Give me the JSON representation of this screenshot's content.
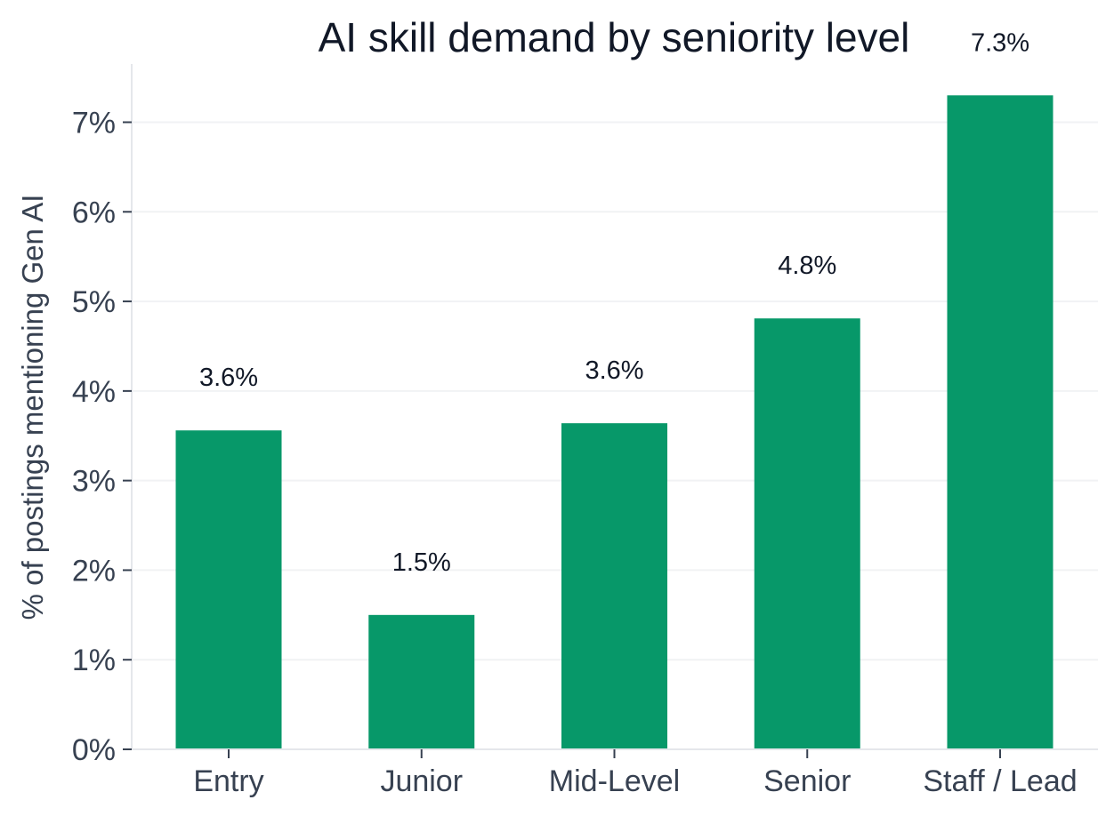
{
  "chart_data": {
    "type": "bar",
    "title": "AI skill demand by seniority level",
    "xlabel": "",
    "ylabel": "% of postings mentioning Gen AI",
    "categories": [
      "Entry",
      "Junior",
      "Mid-Level",
      "Senior",
      "Staff / Lead"
    ],
    "values": [
      3.56,
      1.5,
      3.64,
      4.81,
      7.3
    ],
    "data_labels": [
      "3.6%",
      "1.5%",
      "3.6%",
      "4.8%",
      "7.3%"
    ],
    "yticks": [
      0,
      1,
      2,
      3,
      4,
      5,
      6,
      7
    ],
    "ytick_labels": [
      "0%",
      "1%",
      "2%",
      "3%",
      "4%",
      "5%",
      "6%",
      "7%"
    ],
    "ylim": [
      0,
      7.65
    ],
    "grid": "horizontal",
    "legend": "none",
    "bar_color": "#079869"
  }
}
